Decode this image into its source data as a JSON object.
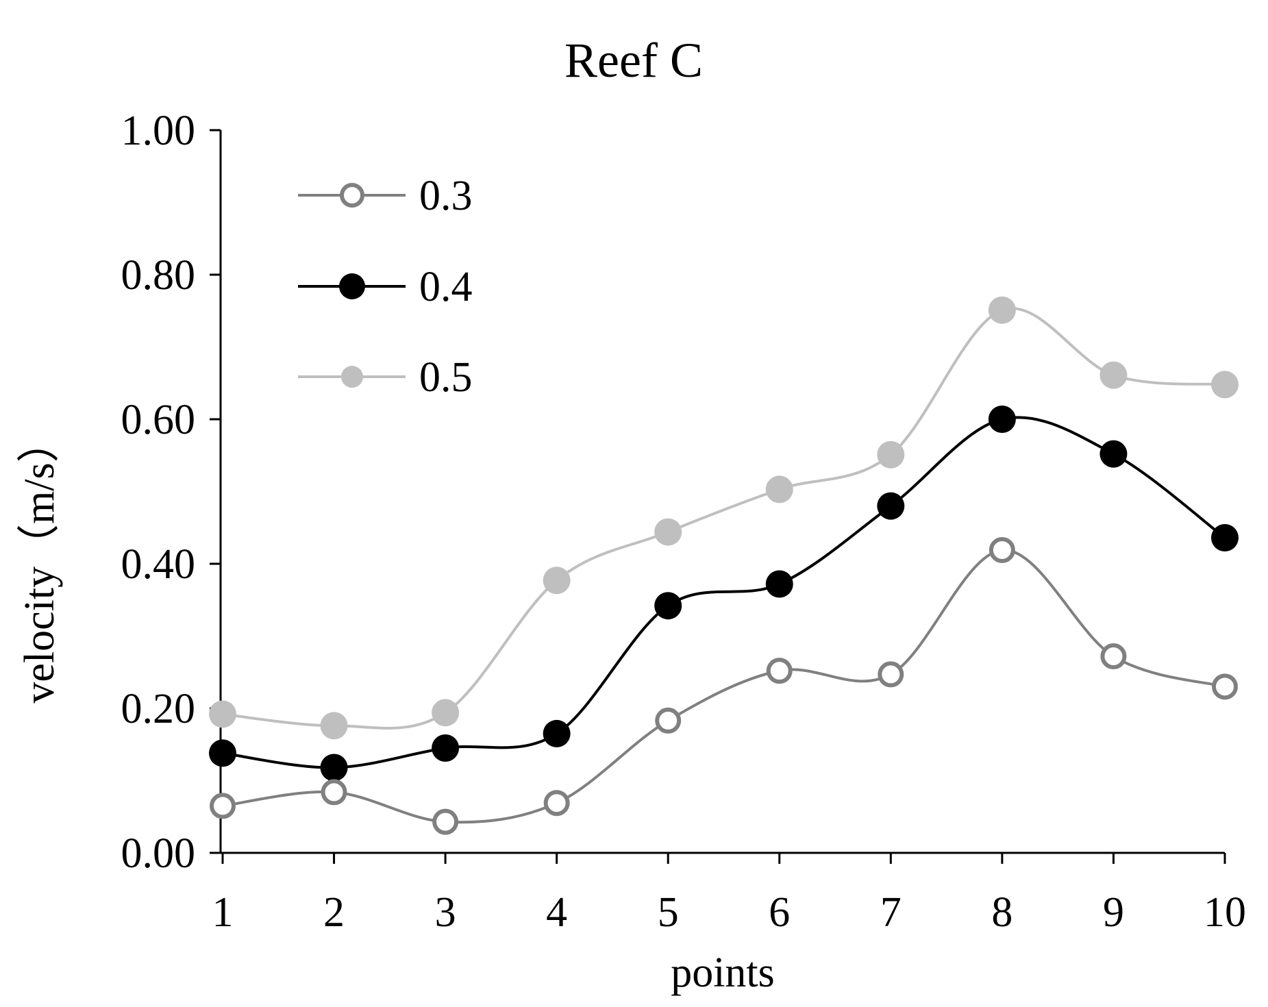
{
  "chart_data": {
    "type": "line",
    "title": "Reef C",
    "xlabel": "points",
    "ylabel": "velocity（m/s）",
    "categories": [
      "1",
      "2",
      "3",
      "4",
      "5",
      "6",
      "7",
      "8",
      "9",
      "10"
    ],
    "yticks": [
      "0.00",
      "0.20",
      "0.40",
      "0.60",
      "0.80",
      "1.00"
    ],
    "ylim": [
      0,
      1
    ],
    "grid": false,
    "legend_position": "top-left",
    "series": [
      {
        "name": "0.3",
        "color": "#808080",
        "marker": "open-circle",
        "values": [
          0.065,
          0.084,
          0.043,
          0.069,
          0.183,
          0.252,
          0.247,
          0.419,
          0.272,
          0.23
        ]
      },
      {
        "name": "0.4",
        "color": "#000000",
        "marker": "filled-circle",
        "values": [
          0.138,
          0.118,
          0.145,
          0.165,
          0.342,
          0.372,
          0.48,
          0.6,
          0.552,
          0.436
        ]
      },
      {
        "name": "0.5",
        "color": "#bfbfbf",
        "marker": "filled-circle",
        "values": [
          0.192,
          0.176,
          0.194,
          0.377,
          0.444,
          0.503,
          0.551,
          0.751,
          0.661,
          0.648
        ]
      }
    ]
  }
}
